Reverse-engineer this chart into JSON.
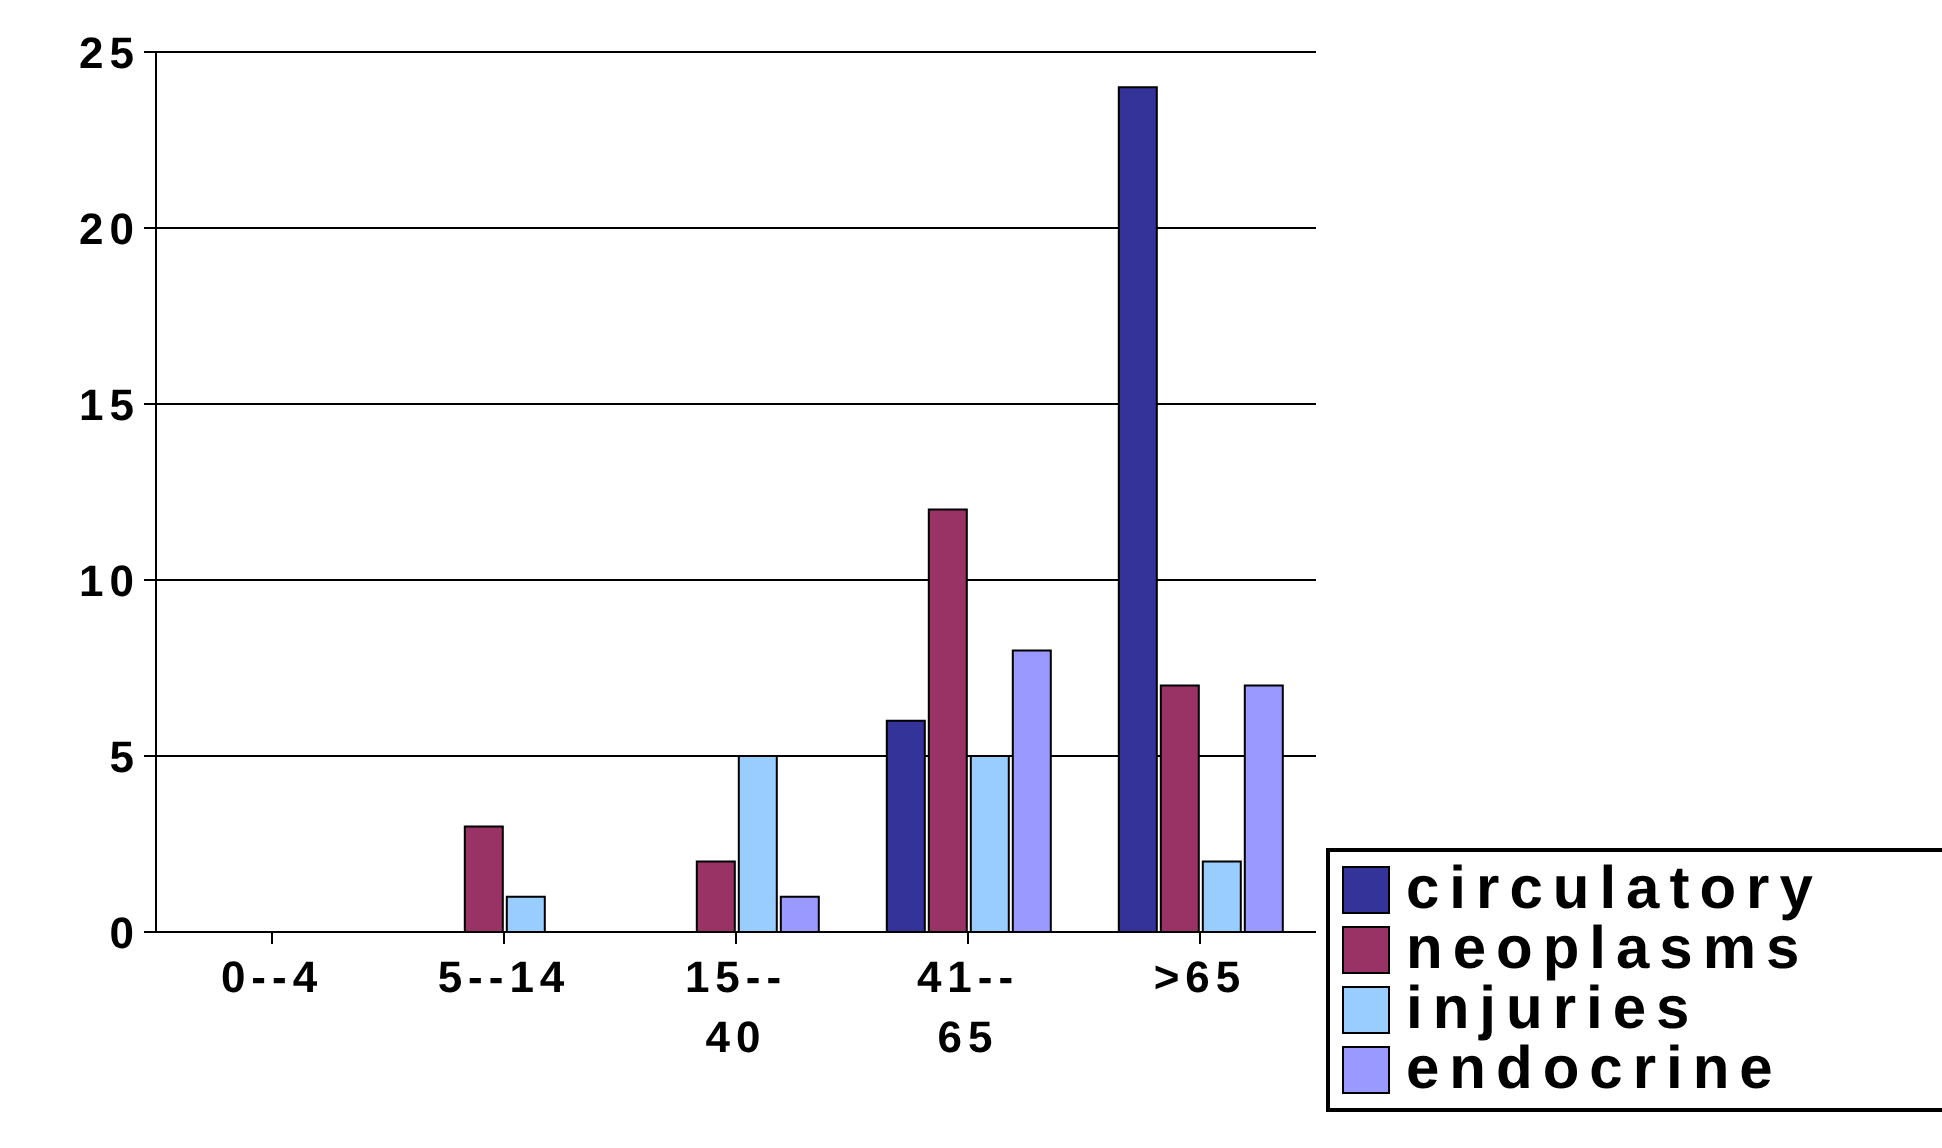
{
  "chart_data": {
    "type": "bar",
    "categories": [
      "0--4",
      "5--14",
      "15--40",
      "41--65",
      ">65"
    ],
    "series": [
      {
        "name": "circulatory",
        "color": "#333399",
        "values": [
          0,
          0,
          0,
          6,
          24
        ]
      },
      {
        "name": "neoplasms",
        "color": "#993366",
        "values": [
          0,
          3,
          2,
          12,
          7
        ]
      },
      {
        "name": "injuries",
        "color": "#99ccff",
        "values": [
          0,
          1,
          5,
          5,
          2
        ]
      },
      {
        "name": "endocrine",
        "color": "#9999ff",
        "values": [
          0,
          0,
          1,
          8,
          7
        ]
      }
    ],
    "ylim": [
      0,
      25
    ],
    "yticks": [
      0,
      5,
      10,
      15,
      20,
      25
    ],
    "grid": "y",
    "legend": "bottom right"
  }
}
